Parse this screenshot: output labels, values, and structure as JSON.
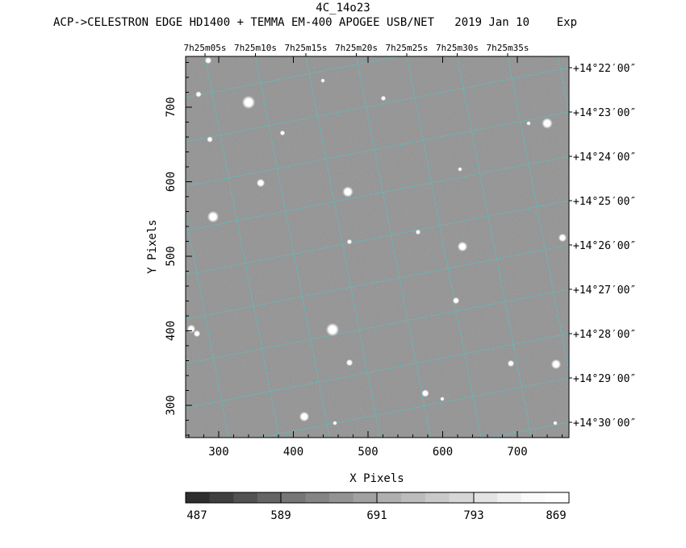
{
  "header": {
    "title": "4C_14o23",
    "subtitle": "ACP->CELESTRON EDGE HD1400 + TEMMA EM-400 APOGEE USB/NET   2019 Jan 10    Exp"
  },
  "axes": {
    "xlabel": "X Pixels",
    "ylabel": "Y Pixels",
    "x_ticks": [
      "300",
      "400",
      "500",
      "600",
      "700"
    ],
    "y_ticks": [
      "300",
      "400",
      "500",
      "600",
      "700"
    ],
    "ra_ticks": [
      "7h25m05s",
      "7h25m10s",
      "7h25m15s",
      "7h25m20s",
      "7h25m25s",
      "7h25m30s",
      "7h25m35s"
    ],
    "dec_ticks": [
      "+14°22′00″",
      "+14°23′00″",
      "+14°24′00″",
      "+14°25′00″",
      "+14°26′00″",
      "+14°27′00″",
      "+14°28′00″",
      "+14°29′00″",
      "+14°30′00″"
    ]
  },
  "colorbar": {
    "labels": [
      "487",
      "589",
      "691",
      "793",
      "869"
    ]
  },
  "colors": {
    "grid": "#4fc8c8",
    "sky": "#8e8e8e"
  }
}
